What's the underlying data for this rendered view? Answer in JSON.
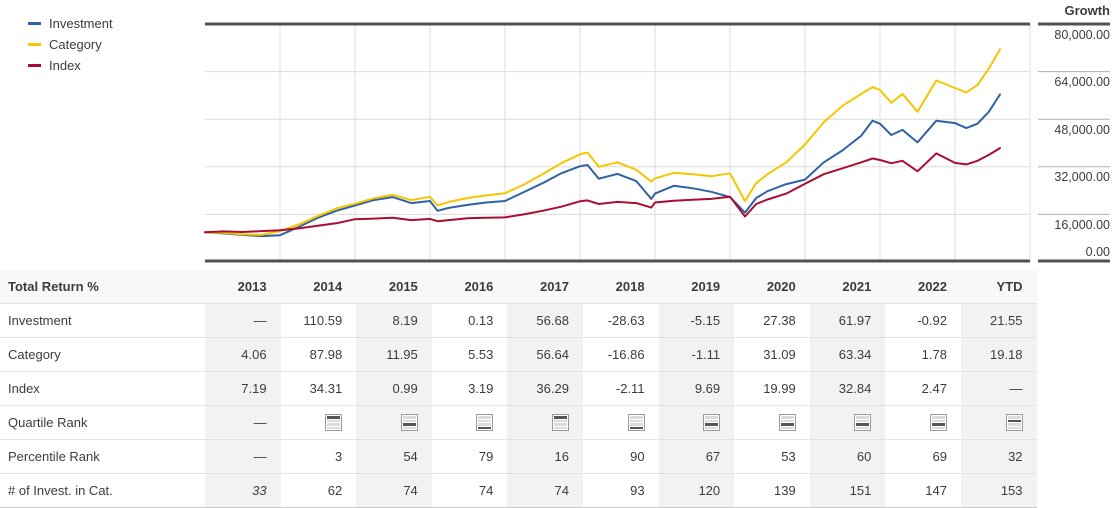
{
  "chart": {
    "axis_title": "Growth",
    "y_axis_labels": [
      "80,000.00",
      "64,000.00",
      "48,000.00",
      "32,000.00",
      "16,000.00",
      "0.00"
    ],
    "legend": [
      {
        "label": "Investment",
        "color": "#2f62a4"
      },
      {
        "label": "Category",
        "color": "#f6c600"
      },
      {
        "label": "Index",
        "color": "#a90e32"
      }
    ]
  },
  "chart_data": {
    "type": "line",
    "title": "Growth of investment vs category and index",
    "ylabel": "Growth",
    "ylim": [
      0,
      80000
    ],
    "xlim": [
      2013,
      2024
    ],
    "y_ticks": [
      0,
      16000,
      32000,
      48000,
      64000,
      80000
    ],
    "x_gridline_years": [
      2014,
      2015,
      2016,
      2017,
      2018,
      2019,
      2020,
      2021,
      2022,
      2023,
      2024
    ],
    "grid": true,
    "legend_position": "top-left",
    "x": [
      2013.0,
      2013.25,
      2013.5,
      2013.75,
      2014.0,
      2014.25,
      2014.5,
      2014.75,
      2015.0,
      2015.25,
      2015.5,
      2015.75,
      2016.0,
      2016.1,
      2016.25,
      2016.5,
      2016.75,
      2017.0,
      2017.25,
      2017.5,
      2017.75,
      2018.0,
      2018.1,
      2018.25,
      2018.5,
      2018.75,
      2018.95,
      2019.0,
      2019.25,
      2019.5,
      2019.75,
      2020.0,
      2020.2,
      2020.35,
      2020.5,
      2020.75,
      2021.0,
      2021.25,
      2021.5,
      2021.75,
      2021.9,
      2022.0,
      2022.15,
      2022.3,
      2022.5,
      2022.75,
      2023.0,
      2023.15,
      2023.3,
      2023.45,
      2023.6
    ],
    "series": [
      {
        "name": "Investment",
        "color": "#2f62a4",
        "values": [
          10000,
          9600,
          9100,
          8700,
          9000,
          11800,
          14800,
          17200,
          19000,
          20800,
          21800,
          19800,
          20500,
          17200,
          18200,
          19200,
          20000,
          20500,
          23500,
          26500,
          29800,
          32200,
          32600,
          28000,
          29600,
          27200,
          21200,
          23000,
          25600,
          24800,
          23600,
          21800,
          16600,
          21500,
          23800,
          26200,
          27700,
          33500,
          37500,
          42500,
          47500,
          46500,
          42700,
          44400,
          40200,
          47500,
          46700,
          45000,
          46500,
          50500,
          56300
        ]
      },
      {
        "name": "Category",
        "color": "#f6c600",
        "values": [
          10000,
          9800,
          9300,
          9100,
          10400,
          12600,
          15400,
          18000,
          19600,
          21400,
          22600,
          20800,
          21900,
          19000,
          20200,
          21500,
          22400,
          23100,
          26000,
          29500,
          33200,
          36200,
          36800,
          32000,
          33500,
          31000,
          27000,
          28100,
          30000,
          29500,
          28800,
          29800,
          20500,
          26500,
          29500,
          33500,
          39500,
          47000,
          52500,
          56500,
          58800,
          57800,
          53500,
          56500,
          50500,
          61000,
          58500,
          57000,
          59500,
          65000,
          71500
        ]
      },
      {
        "name": "Index",
        "color": "#a90e32",
        "values": [
          10000,
          10300,
          10100,
          10400,
          10700,
          11300,
          12200,
          13000,
          14400,
          14600,
          14900,
          14100,
          14500,
          13700,
          14100,
          14700,
          14900,
          15000,
          16000,
          17200,
          18600,
          20400,
          20700,
          19500,
          20200,
          19800,
          18300,
          20000,
          20600,
          20900,
          21200,
          21960,
          15300,
          19500,
          21000,
          23000,
          26300,
          29500,
          31500,
          33500,
          34800,
          34300,
          33200,
          34000,
          30500,
          36500,
          33300,
          32800,
          34000,
          36000,
          38300
        ]
      }
    ]
  },
  "table": {
    "header": {
      "label": "Total Return %",
      "columns": [
        "2013",
        "2014",
        "2015",
        "2016",
        "2017",
        "2018",
        "2019",
        "2020",
        "2021",
        "2022",
        "YTD"
      ]
    },
    "shaded_columns": [
      0,
      2,
      4,
      6,
      8,
      10
    ],
    "rows": [
      {
        "id": "investment",
        "label": "Investment",
        "values": [
          "—",
          "110.59",
          "8.19",
          "0.13",
          "56.68",
          "-28.63",
          "-5.15",
          "27.38",
          "61.97",
          "-0.92",
          "21.55"
        ]
      },
      {
        "id": "category",
        "label": "Category",
        "values": [
          "4.06",
          "87.98",
          "11.95",
          "5.53",
          "56.64",
          "-16.86",
          "-1.11",
          "31.09",
          "63.34",
          "1.78",
          "19.18"
        ]
      },
      {
        "id": "index",
        "label": "Index",
        "values": [
          "7.19",
          "34.31",
          "0.99",
          "3.19",
          "36.29",
          "-2.11",
          "9.69",
          "19.99",
          "32.84",
          "2.47",
          "—"
        ]
      },
      {
        "id": "quartile_rank",
        "label": "Quartile Rank",
        "type": "quartile",
        "values": [
          "—",
          1,
          3,
          4,
          1,
          4,
          3,
          3,
          3,
          3,
          2
        ]
      },
      {
        "id": "percentile_rank",
        "label": "Percentile Rank",
        "values": [
          "—",
          "3",
          "54",
          "79",
          "16",
          "90",
          "67",
          "53",
          "60",
          "69",
          "32"
        ]
      },
      {
        "id": "num_invest",
        "label": "# of Invest. in Cat.",
        "italic_cols": [
          0
        ],
        "values": [
          "33",
          "62",
          "74",
          "74",
          "74",
          "93",
          "120",
          "139",
          "151",
          "147",
          "153"
        ]
      }
    ]
  }
}
